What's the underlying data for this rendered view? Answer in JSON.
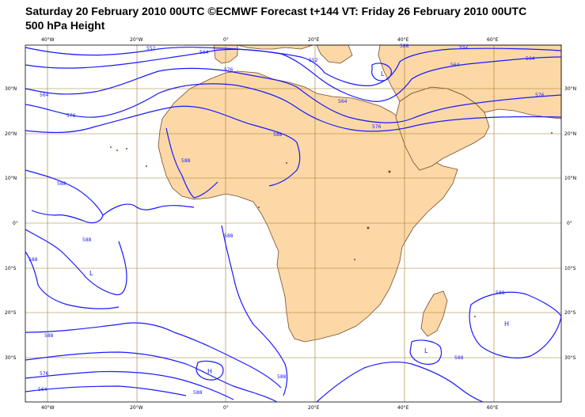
{
  "header": {
    "title_line1": "Saturday 20 February 2010 00UTC ©ECMWF Forecast t+144 VT: Friday 26 February 2010 00UTC",
    "title_line2": "500 hPa Height"
  },
  "axes": {
    "lon_labels": [
      "40°W",
      "20°W",
      "0°",
      "20°E",
      "40°E",
      "60°E"
    ],
    "lat_labels": [
      "30°N",
      "20°N",
      "10°N",
      "0°",
      "10°S",
      "20°S",
      "30°S"
    ]
  },
  "contour_labels": [
    "552",
    "564",
    "576",
    "588",
    "552",
    "564",
    "576",
    "564",
    "576",
    "564",
    "552",
    "576",
    "564",
    "588",
    "588",
    "588",
    "588",
    "588",
    "588",
    "588",
    "588",
    "576",
    "564",
    "588",
    "588",
    "588"
  ],
  "pressure_centers": [
    "L",
    "L",
    "L",
    "H",
    "H"
  ],
  "colors": {
    "land": "#fbd8a6",
    "coast": "#7a4a2a",
    "contour": "#1a1aff",
    "grid": "#a07a2a"
  }
}
